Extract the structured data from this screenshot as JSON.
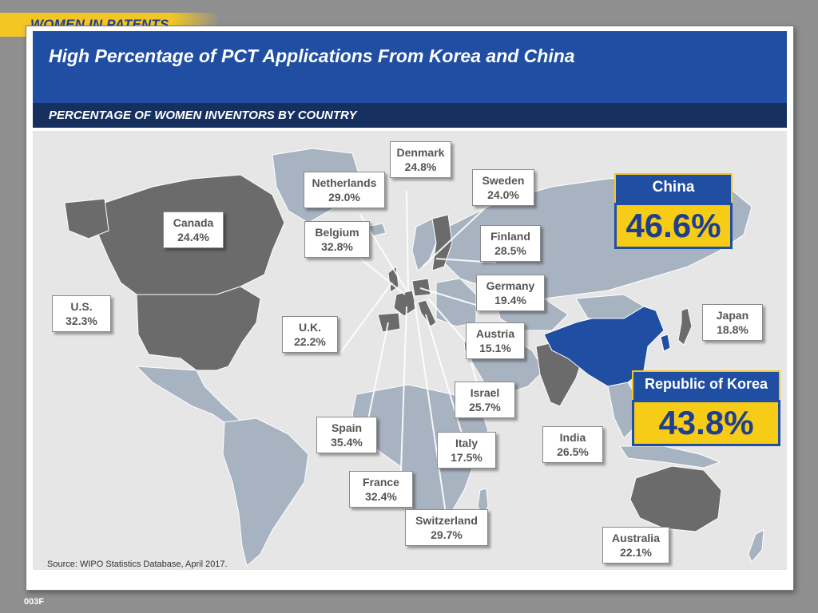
{
  "tag": "WOMEN IN PATENTS",
  "title": "High Percentage of PCT Applications From Korea and China",
  "subtitle": "PERCENTAGE OF WOMEN INVENTORS BY COUNTRY",
  "source": "Source: WIPO Statistics Database, April 2017.",
  "slide_code": "003F",
  "colors": {
    "highlight_country": "#1f4ea3",
    "data_country": "#6b6b6b",
    "other_land": "#a8b3c1",
    "ocean": "#e6e6e6",
    "accent_yellow": "#f6cc16"
  },
  "countries": {
    "china": {
      "name": "China",
      "value": "46.6%"
    },
    "korea": {
      "name": "Republic of Korea",
      "value": "43.8%"
    },
    "denmark": {
      "name": "Denmark",
      "value": "24.8%"
    },
    "netherlands": {
      "name": "Netherlands",
      "value": "29.0%"
    },
    "sweden": {
      "name": "Sweden",
      "value": "24.0%"
    },
    "canada": {
      "name": "Canada",
      "value": "24.4%"
    },
    "belgium": {
      "name": "Belgium",
      "value": "32.8%"
    },
    "finland": {
      "name": "Finland",
      "value": "28.5%"
    },
    "germany": {
      "name": "Germany",
      "value": "19.4%"
    },
    "us": {
      "name": "U.S.",
      "value": "32.3%"
    },
    "uk": {
      "name": "U.K.",
      "value": "22.2%"
    },
    "austria": {
      "name": "Austria",
      "value": "15.1%"
    },
    "japan": {
      "name": "Japan",
      "value": "18.8%"
    },
    "israel": {
      "name": "Israel",
      "value": "25.7%"
    },
    "spain": {
      "name": "Spain",
      "value": "35.4%"
    },
    "italy": {
      "name": "Italy",
      "value": "17.5%"
    },
    "india": {
      "name": "India",
      "value": "26.5%"
    },
    "france": {
      "name": "France",
      "value": "32.4%"
    },
    "switzerland": {
      "name": "Switzerland",
      "value": "29.7%"
    },
    "australia": {
      "name": "Australia",
      "value": "22.1%"
    }
  }
}
